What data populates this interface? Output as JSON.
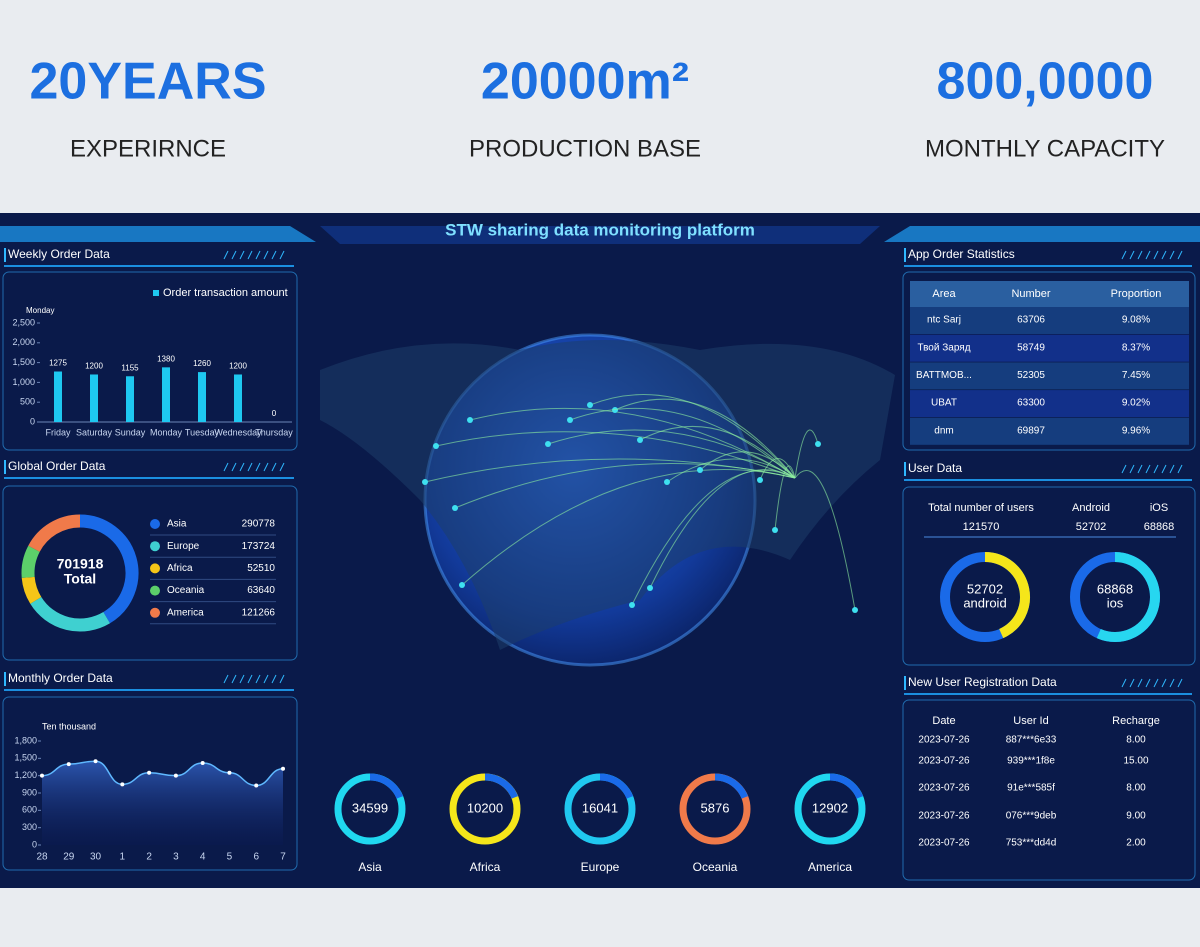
{
  "stats": [
    {
      "value": "20YEARS",
      "label": "EXPERIRNCE"
    },
    {
      "value": "20000m²",
      "label": "PRODUCTION BASE"
    },
    {
      "value": "800,0000",
      "label": "MONTHLY CAPACITY"
    }
  ],
  "dashboard": {
    "title": "STW sharing data monitoring platform",
    "weekly": {
      "title": "Weekly Order Data",
      "type": "bar",
      "legend": "Order transaction amount",
      "tooltip": "Monday",
      "categories": [
        "Friday",
        "Saturday",
        "Sunday",
        "Monday",
        "Tuesday",
        "Wednesday",
        "Thursday"
      ],
      "values": [
        1275,
        1200,
        1155,
        1380,
        1260,
        1200,
        0
      ],
      "color": "#1ec8f0",
      "ylim": [
        0,
        2500
      ],
      "yticks": [
        0,
        500,
        {
          "value": 1000,
          "label": "1,000"
        },
        {
          "value": 1500,
          "label": "1,500"
        },
        {
          "value": 2000,
          "label": "2,000"
        },
        {
          "value": 2500,
          "label": "2,500"
        }
      ]
    },
    "global": {
      "title": "Global Order Data",
      "type": "pie",
      "total": 701918,
      "total_label": "Total",
      "series": [
        {
          "name": "Asia",
          "value": 290778,
          "color": "#1a6ae8"
        },
        {
          "name": "Europe",
          "value": 173724,
          "color": "#3fd0d0"
        },
        {
          "name": "Africa",
          "value": 52510,
          "color": "#f5c518"
        },
        {
          "name": "Oceania",
          "value": 63640,
          "color": "#5ccf6a"
        },
        {
          "name": "America",
          "value": 121266,
          "color": "#f07a4a"
        }
      ]
    },
    "monthly": {
      "title": "Monthly Order Data",
      "type": "line",
      "unit_label": "Ten thousand",
      "categories": [
        "28",
        "29",
        "30",
        "1",
        "2",
        "3",
        "4",
        "5",
        "6",
        "7"
      ],
      "values": [
        1200,
        1400,
        1450,
        1050,
        1250,
        1200,
        1420,
        1250,
        1030,
        1320
      ],
      "color": "#5fb8ff",
      "ylim": [
        0,
        1800
      ],
      "yticks": [
        0,
        300,
        600,
        900,
        {
          "value": 1200,
          "label": "1,200"
        },
        {
          "value": 1500,
          "label": "1,500"
        },
        {
          "value": 1800,
          "label": "1,800"
        }
      ]
    },
    "app_orders": {
      "title": "App Order Statistics",
      "columns": [
        "Area",
        "Number",
        "Proportion"
      ],
      "rows": [
        [
          "ntc Sarj",
          63706,
          "9.08%"
        ],
        [
          "Твой Заряд",
          58749,
          "8.37%"
        ],
        [
          "BATTMOB...",
          52305,
          "7.45%"
        ],
        [
          "UBAT",
          63300,
          "9.02%"
        ],
        [
          "dnm",
          69897,
          "9.96%"
        ]
      ]
    },
    "users": {
      "title": "User Data",
      "columns": [
        "Total number of users",
        "Android",
        "iOS"
      ],
      "values": [
        121570,
        52702,
        68868
      ],
      "gauges": [
        {
          "label": "android",
          "color": "#f5e61a",
          "track": "#1a6ae8"
        },
        {
          "label": "ios",
          "color": "#27d6f0",
          "track": "#1a6ae8"
        }
      ]
    },
    "registrations": {
      "title": "New User Registration Data",
      "columns": [
        "Date",
        "User Id",
        "Recharge"
      ],
      "rows": [
        [
          "2023-07-26",
          "887***6e33",
          "8.00"
        ],
        [
          "2023-07-26",
          "939***1f8e",
          "15.00"
        ],
        [
          "2023-07-26",
          "91e***585f",
          "8.00"
        ],
        [
          "2023-07-26",
          "076***9deb",
          "9.00"
        ],
        [
          "2023-07-26",
          "753***dd4d",
          "2.00"
        ]
      ]
    },
    "regions": [
      {
        "name": "Asia",
        "value": 34599,
        "color": "#20d8f0"
      },
      {
        "name": "Africa",
        "value": 10200,
        "color": "#f5e61a"
      },
      {
        "name": "Europe",
        "value": 16041,
        "color": "#20c8f0"
      },
      {
        "name": "Oceania",
        "value": 5876,
        "color": "#f07a4a"
      },
      {
        "name": "America",
        "value": 12902,
        "color": "#20d8f0"
      }
    ]
  }
}
